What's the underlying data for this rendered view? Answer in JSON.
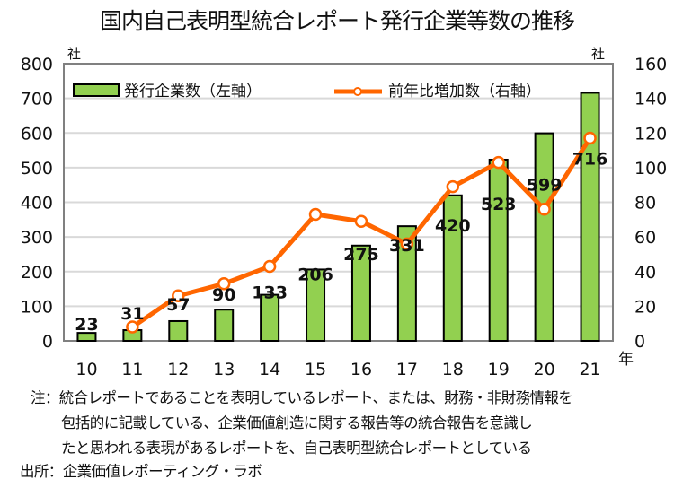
{
  "chart_data": {
    "type": "bar",
    "title": "国内自己表明型統合レポート発行企業等数の推移",
    "categories": [
      "10",
      "11",
      "12",
      "13",
      "14",
      "15",
      "16",
      "17",
      "18",
      "19",
      "20",
      "21"
    ],
    "series": [
      {
        "name": "発行企業数（左軸）",
        "type": "bar",
        "axis": "left",
        "color": "#92d050",
        "values": [
          23,
          31,
          57,
          90,
          133,
          206,
          275,
          331,
          420,
          523,
          599,
          716
        ]
      },
      {
        "name": "前年比増加数（右軸）",
        "type": "line",
        "axis": "right",
        "color": "#ff6600",
        "values": [
          null,
          8,
          26,
          33,
          43,
          73,
          69,
          56,
          89,
          103,
          76,
          117
        ]
      }
    ],
    "left_axis": {
      "unit": "社",
      "ylim": [
        0,
        800
      ],
      "ticks": [
        "0",
        "100",
        "200",
        "300",
        "400",
        "500",
        "600",
        "700",
        "800"
      ]
    },
    "right_axis": {
      "unit": "社",
      "ylim": [
        0,
        160
      ],
      "ticks": [
        "0",
        "20",
        "40",
        "60",
        "80",
        "100",
        "120",
        "140",
        "160"
      ]
    },
    "xlabel": "年",
    "grid": true,
    "legend": "top"
  },
  "notes": {
    "line1": "注：統合レポートであることを表明しているレポート、または、財務・非財務情報を",
    "line2": "包括的に記載している、企業価値創造に関する報告等の統合報告を意識し",
    "line3": "たと思われる表現があるレポートを、自己表明型統合レポートとしている",
    "source": "出所：企業価値レポーティング・ラボ"
  }
}
